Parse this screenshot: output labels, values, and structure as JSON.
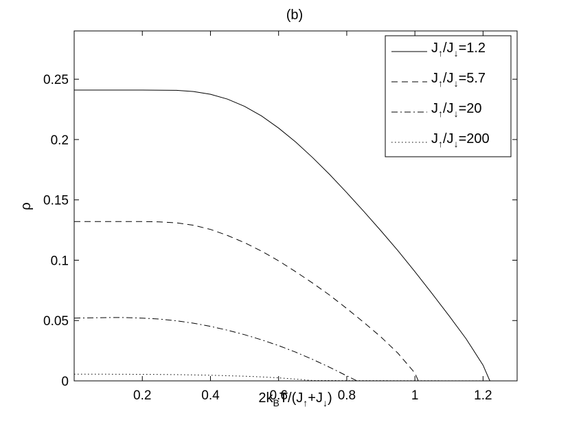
{
  "chart_data": {
    "type": "line",
    "title": "(b)",
    "xlabel": {
      "parts": [
        "2k",
        "B",
        "T/(J",
        "↑",
        "+J",
        "↓",
        ")"
      ]
    },
    "ylabel": "ρ",
    "xlim": [
      0,
      1.3
    ],
    "ylim": [
      0,
      0.29
    ],
    "xticks": [
      0.2,
      0.4,
      0.6,
      0.8,
      1.0,
      1.2
    ],
    "xtick_labels": [
      "0.2",
      "0.4",
      "0.6",
      "0.8",
      "1",
      "1.2"
    ],
    "yticks": [
      0,
      0.05,
      0.1,
      0.15,
      0.2,
      0.25
    ],
    "ytick_labels": [
      "0",
      "0.05",
      "0.1",
      "0.15",
      "0.2",
      "0.25"
    ],
    "grid": false,
    "legend_position": "top-right",
    "series": [
      {
        "name_parts": [
          "J",
          "↑",
          "/J",
          "↓",
          "=1.2"
        ],
        "style": "solid",
        "x": [
          0,
          0.1,
          0.2,
          0.3,
          0.35,
          0.4,
          0.45,
          0.5,
          0.55,
          0.6,
          0.65,
          0.7,
          0.75,
          0.8,
          0.85,
          0.9,
          0.95,
          1.0,
          1.05,
          1.1,
          1.15,
          1.2,
          1.22
        ],
        "y": [
          0.241,
          0.241,
          0.241,
          0.2408,
          0.2398,
          0.2375,
          0.2335,
          0.2275,
          0.2195,
          0.2095,
          0.198,
          0.185,
          0.171,
          0.156,
          0.1405,
          0.1245,
          0.108,
          0.0905,
          0.0725,
          0.054,
          0.035,
          0.013,
          0.0
        ]
      },
      {
        "name_parts": [
          "J",
          "↑",
          "/J",
          "↓",
          "=5.7"
        ],
        "style": "dashed",
        "x": [
          0,
          0.1,
          0.2,
          0.25,
          0.3,
          0.35,
          0.4,
          0.45,
          0.5,
          0.55,
          0.6,
          0.65,
          0.7,
          0.75,
          0.8,
          0.85,
          0.9,
          0.95,
          1.0,
          1.01,
          1.3
        ],
        "y": [
          0.132,
          0.132,
          0.132,
          0.1318,
          0.131,
          0.129,
          0.1255,
          0.1205,
          0.1145,
          0.1075,
          0.0995,
          0.0905,
          0.081,
          0.071,
          0.06,
          0.0485,
          0.0365,
          0.023,
          0.0065,
          0.0,
          0.0
        ]
      },
      {
        "name_parts": [
          "J",
          "↑",
          "/J",
          "↓",
          "=20"
        ],
        "style": "dashdot",
        "x": [
          0,
          0.1,
          0.15,
          0.2,
          0.25,
          0.3,
          0.35,
          0.4,
          0.45,
          0.5,
          0.55,
          0.6,
          0.65,
          0.7,
          0.75,
          0.8,
          0.83,
          1.3
        ],
        "y": [
          0.052,
          0.0525,
          0.0525,
          0.052,
          0.0512,
          0.0498,
          0.0478,
          0.0452,
          0.042,
          0.0383,
          0.034,
          0.0292,
          0.0238,
          0.0178,
          0.0112,
          0.0042,
          0.0,
          0.0
        ]
      },
      {
        "name_parts": [
          "J",
          "↑",
          "/J",
          "↓",
          "=200"
        ],
        "style": "dotted",
        "x": [
          0,
          0.1,
          0.2,
          0.3,
          0.4,
          0.5,
          0.55,
          0.6,
          0.65,
          0.7,
          1.3
        ],
        "y": [
          0.0055,
          0.0055,
          0.0054,
          0.0052,
          0.0047,
          0.0039,
          0.0033,
          0.0025,
          0.0015,
          0.0003,
          0.0
        ]
      }
    ]
  }
}
